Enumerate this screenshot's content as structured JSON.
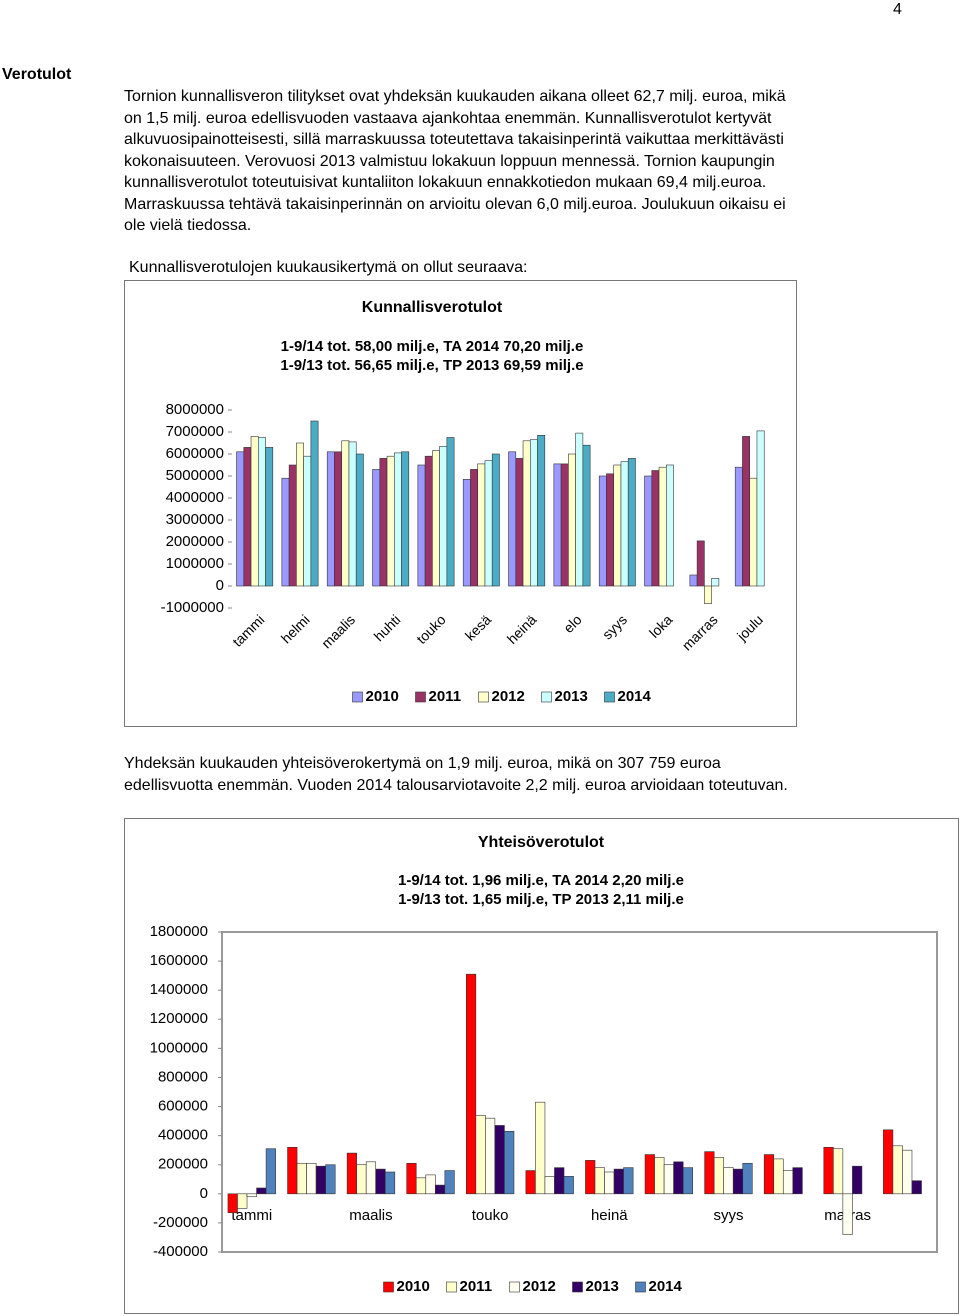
{
  "page_number": "4",
  "heading": "Verotulot",
  "paragraph1": [
    "Tornion kunnallisveron tilitykset ovat yhdeksän kuukauden aikana olleet 62,7 milj. euroa, mikä",
    "on 1,5 milj. euroa edellisvuoden vastaava ajankohtaa enemmän. Kunnallisverotulot kertyvät",
    "alkuvuosipainotteisesti, sillä marraskuussa toteutettava takaisinperintä vaikuttaa merkittävästi",
    "kokonaisuuteen. Verovuosi 2013 valmistuu lokakuun loppuun mennessä. Tornion kaupungin",
    "kunnallisverotulot toteutuisivat kuntaliiton lokakuun ennakkotiedon mukaan 69,4 milj.euroa.",
    "Marraskuussa tehtävä takaisinperinnän on arvioitu olevan 6,0 milj.euroa. Joulukuun oikaisu ei",
    "ole vielä tiedossa."
  ],
  "chart1_caption": "Kunnallisverotulojen kuukausikertymä on ollut seuraava:",
  "paragraph2": [
    "Yhdeksän kuukauden yhteisöverokertymä on 1,9 milj. euroa, mikä on 307 759 euroa",
    "edellisvuotta enemmän. Vuoden 2014 talousarviotavoite 2,2 milj. euroa arvioidaan toteutuvan."
  ],
  "chart_data": [
    {
      "type": "bar",
      "title": "Kunnallisverotulot",
      "subtitle": [
        "1-9/14 tot. 58,00 milj.e, TA 2014 70,20 milj.e",
        "1-9/13 tot. 56,65 milj.e, TP 2013 69,59 milj.e"
      ],
      "categories": [
        "tammi",
        "helmi",
        "maalis",
        "huhti",
        "touko",
        "kesä",
        "heinä",
        "elo",
        "syys",
        "loka",
        "marras",
        "joulu"
      ],
      "series": [
        {
          "name": "2010",
          "color": "#9999ff",
          "values": [
            6100000,
            4900000,
            6100000,
            5300000,
            5500000,
            4850000,
            6100000,
            5550000,
            5000000,
            5000000,
            500000,
            5400000
          ]
        },
        {
          "name": "2011",
          "color": "#993366",
          "values": [
            6300000,
            5500000,
            6100000,
            5800000,
            5900000,
            5300000,
            5800000,
            5550000,
            5100000,
            5250000,
            2050000,
            6800000
          ]
        },
        {
          "name": "2012",
          "color": "#ffffcc",
          "values": [
            6800000,
            6500000,
            6600000,
            5900000,
            6150000,
            5550000,
            6600000,
            6000000,
            5500000,
            5400000,
            -800000,
            4900000
          ]
        },
        {
          "name": "2013",
          "color": "#ccffff",
          "values": [
            6750000,
            5900000,
            6550000,
            6050000,
            6350000,
            5700000,
            6650000,
            6950000,
            5650000,
            5500000,
            350000,
            7050000
          ]
        },
        {
          "name": "2014",
          "color": "#4bacc6",
          "values": [
            6300000,
            7500000,
            6000000,
            6100000,
            6750000,
            6000000,
            6850000,
            6400000,
            5800000,
            null,
            null,
            null
          ]
        }
      ],
      "ylim": [
        -1000000,
        8000000
      ],
      "yticks": [
        -1000000,
        0,
        1000000,
        2000000,
        3000000,
        4000000,
        5000000,
        6000000,
        7000000,
        8000000
      ],
      "grid": false,
      "legend": "bottom"
    },
    {
      "type": "bar",
      "title": "Yhteisöverotulot",
      "subtitle": [
        "1-9/14 tot. 1,96 milj.e, TA 2014 2,20 milj.e",
        "1-9/13 tot. 1,65 milj.e, TP 2013 2,11 milj.e"
      ],
      "categories": [
        "tammi",
        null,
        "maalis",
        null,
        "touko",
        null,
        "heinä",
        null,
        "syys",
        null,
        "marras",
        null
      ],
      "series": [
        {
          "name": "2010",
          "color": "#ff0000",
          "values": [
            -130000,
            320000,
            280000,
            210000,
            1510000,
            160000,
            230000,
            270000,
            290000,
            270000,
            320000,
            440000
          ]
        },
        {
          "name": "2011",
          "color": "#ffffcc",
          "values": [
            -100000,
            210000,
            200000,
            110000,
            540000,
            630000,
            180000,
            250000,
            250000,
            240000,
            310000,
            330000
          ]
        },
        {
          "name": "2012",
          "color": "#fffff0",
          "values": [
            -20000,
            210000,
            220000,
            130000,
            520000,
            120000,
            150000,
            200000,
            180000,
            160000,
            -280000,
            300000
          ]
        },
        {
          "name": "2013",
          "color": "#330066",
          "values": [
            40000,
            190000,
            170000,
            60000,
            470000,
            180000,
            170000,
            220000,
            170000,
            180000,
            190000,
            90000
          ]
        },
        {
          "name": "2014",
          "color": "#4f81bd",
          "values": [
            310000,
            200000,
            150000,
            160000,
            430000,
            120000,
            180000,
            180000,
            210000,
            null,
            null,
            null
          ]
        }
      ],
      "ylim": [
        -400000,
        1800000
      ],
      "yticks": [
        -400000,
        -200000,
        0,
        200000,
        400000,
        600000,
        800000,
        1000000,
        1200000,
        1400000,
        1600000,
        1800000
      ],
      "grid": false,
      "legend": "bottom"
    }
  ]
}
